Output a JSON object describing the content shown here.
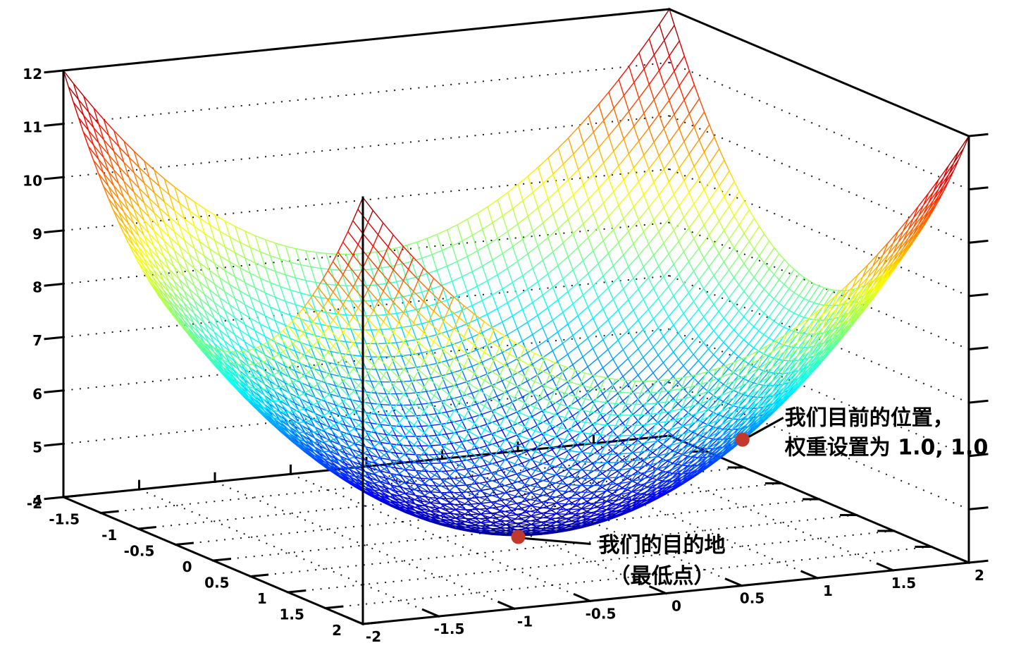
{
  "chart_data": {
    "type": "surface",
    "title": "",
    "function": "z = x^2 + y^2 + 4",
    "x_range": [
      -2,
      2
    ],
    "y_range": [
      -2,
      2
    ],
    "z_range": [
      4,
      12
    ],
    "x_tick_labels": [
      "-2",
      "-1.5",
      "-1",
      "-0.5",
      "0",
      "0.5",
      "1",
      "1.5",
      "2"
    ],
    "y_tick_labels": [
      "-2",
      "-1.5",
      "-1",
      "-0.5",
      "0",
      "0.5",
      "1",
      "1.5",
      "2"
    ],
    "z_tick_labels": [
      "4",
      "5",
      "6",
      "7",
      "8",
      "9",
      "10",
      "11",
      "12"
    ],
    "mesh_divisions": 60,
    "colormap": "jet",
    "grid_style": "dotted",
    "legend": "none",
    "annotations": [
      {
        "x": 1,
        "y": 1,
        "z": 6,
        "line1": "我们目前的位置，",
        "line2": "权重设置为 1.0, 1.0",
        "marker_color": "#c0392b"
      },
      {
        "x": 0,
        "y": 0,
        "z": 4,
        "line1": "我们的目的地",
        "line2": "（最低点）",
        "marker_color": "#c0392b"
      }
    ],
    "colors": {
      "axis": "#000000",
      "grid_dots": "#000000",
      "annotation_text": "#000000",
      "background": "#ffffff"
    }
  }
}
